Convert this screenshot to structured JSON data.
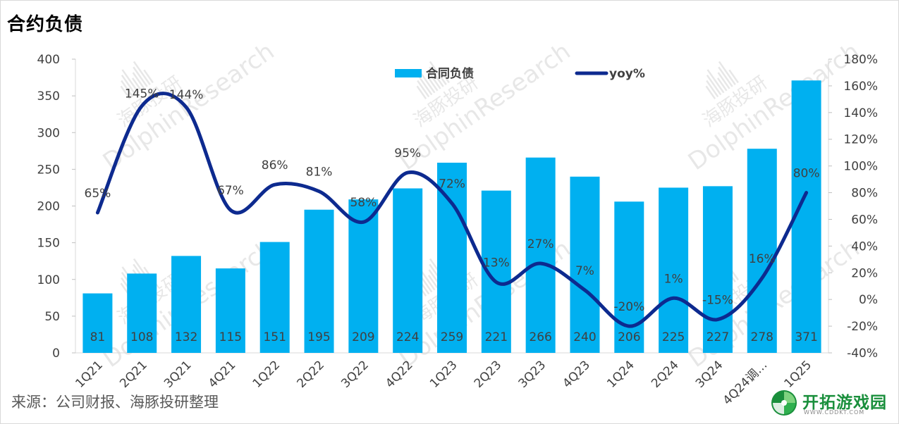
{
  "title": "合约负债",
  "source": "来源：公司财报、海豚投研整理",
  "watermark": {
    "cn": "海豚投研",
    "en": "DolphinResearch"
  },
  "logo": {
    "name": "开拓游戏园",
    "url_text": "WWW.CDDKT.COM"
  },
  "colors": {
    "bar": "#00b0f0",
    "line": "#0d2a8f",
    "axis_text": "#404040",
    "data_label": "#404040"
  },
  "chart_data": {
    "type": "bar",
    "title": "合约负债",
    "categories": [
      "1Q21",
      "2Q21",
      "3Q21",
      "4Q21",
      "1Q22",
      "2Q22",
      "3Q22",
      "4Q22",
      "1Q23",
      "2Q23",
      "3Q23",
      "4Q23",
      "1Q24",
      "2Q24",
      "3Q24",
      "4Q24调…",
      "1Q25"
    ],
    "series": [
      {
        "name": "合同负债",
        "type": "bar",
        "axis": "left",
        "values": [
          81,
          108,
          132,
          115,
          151,
          195,
          209,
          224,
          259,
          221,
          266,
          240,
          206,
          225,
          227,
          278,
          371
        ],
        "labels": [
          "81",
          "108",
          "132",
          "115",
          "151",
          "195",
          "209",
          "224",
          "259",
          "221",
          "266",
          "240",
          "206",
          "225",
          "227",
          "278",
          "371"
        ]
      },
      {
        "name": "yoy%",
        "type": "line",
        "axis": "right",
        "values": [
          65,
          145,
          144,
          67,
          86,
          81,
          58,
          95,
          72,
          13,
          27,
          7,
          -20,
          1,
          -15,
          16,
          80
        ],
        "labels": [
          "65%",
          "145%",
          "144%",
          "67%",
          "86%",
          "81%",
          "58%",
          "95%",
          "72%",
          "13%",
          "27%",
          "7%",
          "-20%",
          "1%",
          "-15%",
          "16%",
          "80%"
        ]
      }
    ],
    "y_left": {
      "min": 0,
      "max": 400,
      "ticks": [
        "0",
        "50",
        "100",
        "150",
        "200",
        "250",
        "300",
        "350",
        "400"
      ]
    },
    "y_right": {
      "min": -40,
      "max": 180,
      "ticks": [
        "-40%",
        "-20%",
        "0%",
        "20%",
        "40%",
        "60%",
        "80%",
        "100%",
        "120%",
        "140%",
        "160%",
        "180%"
      ]
    },
    "legend": "top",
    "grid": false
  }
}
